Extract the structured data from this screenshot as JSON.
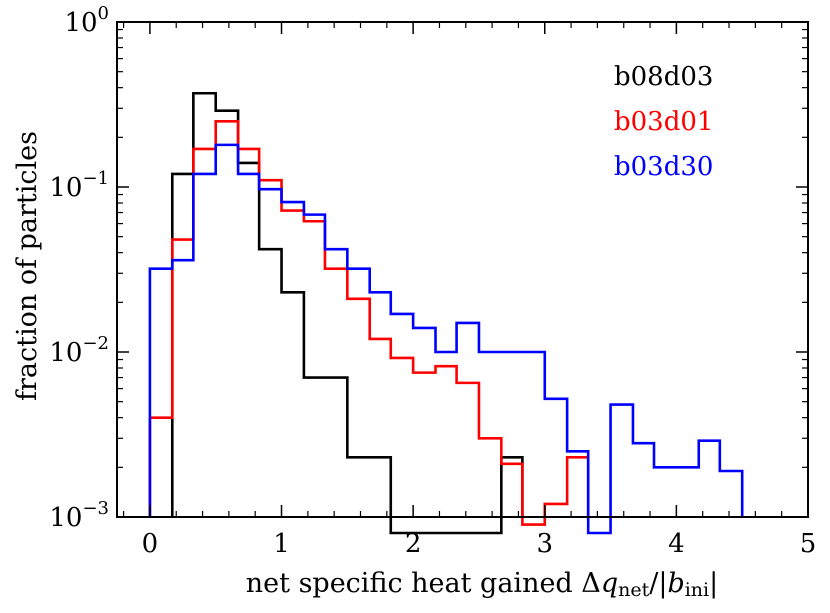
{
  "chart_data": {
    "type": "histogram-step",
    "xlabel": "net specific heat gained Δq_net/|b_ini|",
    "xlabel_parts": {
      "prefix": "net specific heat gained Δ",
      "q": "q",
      "net": "net",
      "slash": "/|",
      "b": "b",
      "ini": "ini",
      "bar": "|"
    },
    "ylabel": "fraction of particles",
    "xlim": [
      -0.25,
      5.0
    ],
    "ylim": [
      0.001,
      1.0
    ],
    "yscale": "log",
    "xticks": [
      0,
      1,
      2,
      3,
      4,
      5
    ],
    "xtick_labels": [
      "0",
      "1",
      "2",
      "3",
      "4",
      "5"
    ],
    "yticks": [
      {
        "value": 0.001,
        "base": "10",
        "exp": "−3"
      },
      {
        "value": 0.01,
        "base": "10",
        "exp": "−2"
      },
      {
        "value": 0.1,
        "base": "10",
        "exp": "−1"
      },
      {
        "value": 1.0,
        "base": "10",
        "exp": "0"
      }
    ],
    "legend_position": "top-right",
    "series": [
      {
        "name": "b08d03",
        "color": "#000000",
        "edges": [
          0.17,
          0.33,
          0.5,
          0.67,
          0.83,
          1.0,
          1.17,
          1.5,
          1.83,
          2.67,
          2.83
        ],
        "values": [
          0.12,
          0.37,
          0.29,
          0.14,
          0.042,
          0.023,
          0.007,
          0.0023,
          0.0008,
          0.0023
        ]
      },
      {
        "name": "b03d01",
        "color": "#ff0000",
        "edges": [
          0.0,
          0.17,
          0.33,
          0.5,
          0.67,
          0.83,
          1.0,
          1.17,
          1.33,
          1.5,
          1.67,
          1.83,
          2.0,
          2.17,
          2.33,
          2.5,
          2.67,
          2.83,
          3.0,
          3.17,
          3.33
        ],
        "values": [
          0.004,
          0.048,
          0.17,
          0.25,
          0.17,
          0.11,
          0.072,
          0.062,
          0.032,
          0.021,
          0.012,
          0.0092,
          0.0075,
          0.0082,
          0.0065,
          0.003,
          0.0021,
          0.0009,
          0.0012,
          0.0023
        ]
      },
      {
        "name": "b03d30",
        "color": "#0000ff",
        "edges": [
          0.0,
          0.17,
          0.33,
          0.5,
          0.67,
          0.83,
          1.0,
          1.17,
          1.33,
          1.5,
          1.67,
          1.83,
          2.0,
          2.17,
          2.33,
          2.5,
          2.67,
          2.83,
          3.0,
          3.17,
          3.33,
          3.5,
          3.67,
          3.83,
          4.0,
          4.17,
          4.33,
          4.5
        ],
        "values": [
          0.032,
          0.036,
          0.12,
          0.18,
          0.12,
          0.097,
          0.081,
          0.068,
          0.042,
          0.032,
          0.023,
          0.017,
          0.014,
          0.01,
          0.015,
          0.01,
          0.01,
          0.01,
          0.0052,
          0.0025,
          0.0008,
          0.0048,
          0.0028,
          0.002,
          0.002,
          0.0029,
          0.0019
        ]
      }
    ]
  }
}
